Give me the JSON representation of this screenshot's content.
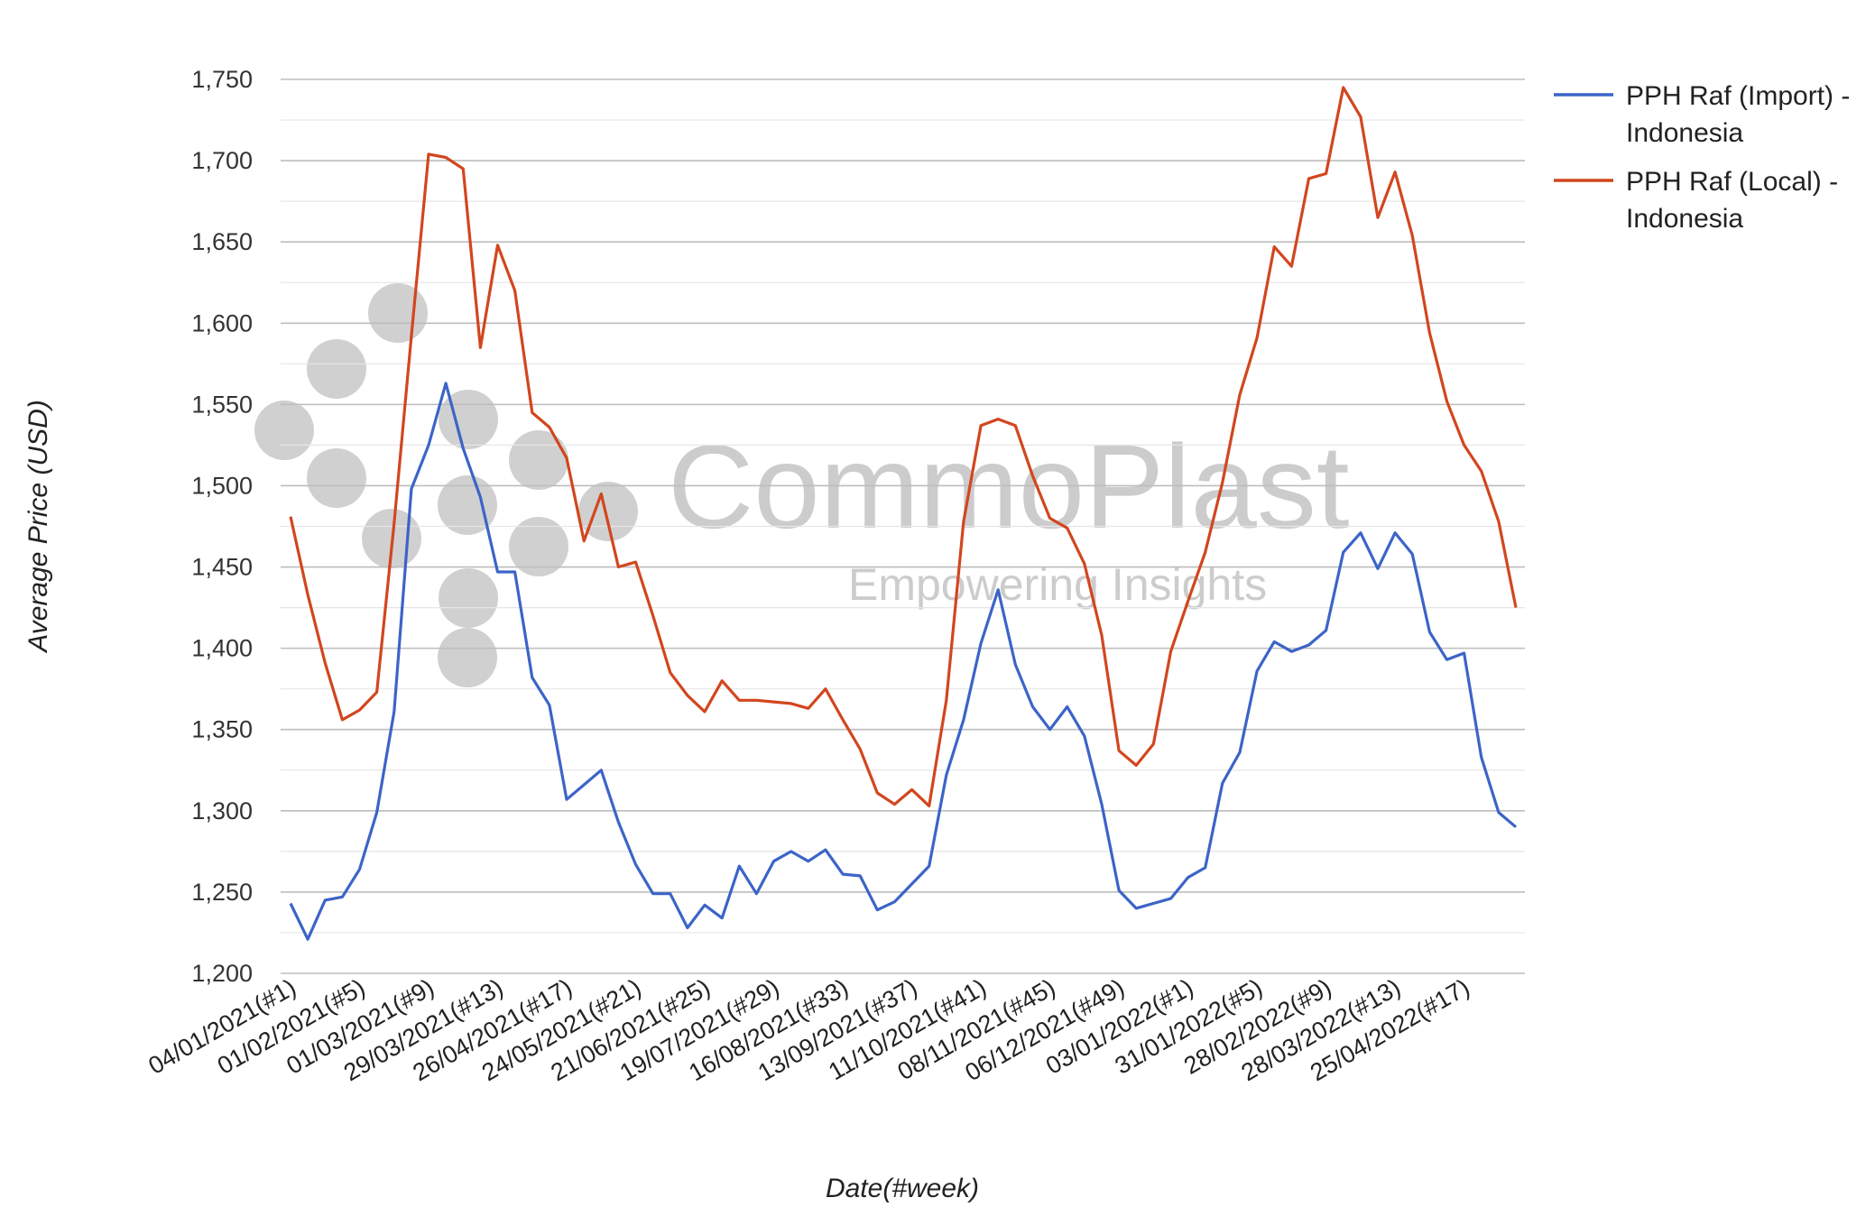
{
  "chart_data": {
    "type": "line",
    "x_label": "Date(#week)",
    "y_label": "Average Price (USD)",
    "y_range": [
      1200,
      1750
    ],
    "y_ticks": [
      1200,
      1250,
      1300,
      1350,
      1400,
      1450,
      1500,
      1550,
      1600,
      1650,
      1700,
      1750
    ],
    "y_tick_labels": [
      "1,200",
      "1,250",
      "1,300",
      "1,350",
      "1,400",
      "1,450",
      "1,500",
      "1,550",
      "1,600",
      "1,650",
      "1,700",
      "1,750"
    ],
    "grid": "horizontal",
    "legend_position": "right",
    "watermark": {
      "brand": "CommoPlast",
      "tagline": "Empowering Insights"
    },
    "x_tick_labels": [
      {
        "index": 0,
        "label": "04/01/2021(#1)"
      },
      {
        "index": 4,
        "label": "01/02/2021(#5)"
      },
      {
        "index": 8,
        "label": "01/03/2021(#9)"
      },
      {
        "index": 12,
        "label": "29/03/2021(#13)"
      },
      {
        "index": 16,
        "label": "26/04/2021(#17)"
      },
      {
        "index": 20,
        "label": "24/05/2021(#21)"
      },
      {
        "index": 24,
        "label": "21/06/2021(#25)"
      },
      {
        "index": 28,
        "label": "19/07/2021(#29)"
      },
      {
        "index": 32,
        "label": "16/08/2021(#33)"
      },
      {
        "index": 36,
        "label": "13/09/2021(#37)"
      },
      {
        "index": 40,
        "label": "11/10/2021(#41)"
      },
      {
        "index": 44,
        "label": "08/11/2021(#45)"
      },
      {
        "index": 48,
        "label": "06/12/2021(#49)"
      },
      {
        "index": 52,
        "label": "03/01/2022(#1)"
      },
      {
        "index": 56,
        "label": "31/01/2022(#5)"
      },
      {
        "index": 60,
        "label": "28/02/2022(#9)"
      },
      {
        "index": 64,
        "label": "28/03/2022(#13)"
      },
      {
        "index": 68,
        "label": "25/04/2022(#17)"
      }
    ],
    "series": [
      {
        "name": "PPH Raf (Import) - Indonesia",
        "legend_lines": [
          "PPH Raf (Import) -",
          "Indonesia"
        ],
        "color": "#3c64c8",
        "values": [
          1243,
          1221,
          1245,
          1247,
          1264,
          1299,
          1361,
          1498,
          1525,
          1563,
          1523,
          1493,
          1447,
          1447,
          1382,
          1365,
          1307,
          1316,
          1325,
          1293,
          1267,
          1249,
          1249,
          1228,
          1242,
          1234,
          1266,
          1249,
          1269,
          1275,
          1269,
          1276,
          1261,
          1260,
          1239,
          1244,
          1255,
          1266,
          1322,
          1356,
          1403,
          1436,
          1390,
          1364,
          1350,
          1364,
          1346,
          1304,
          1251,
          1240,
          1243,
          1246,
          1259,
          1265,
          1317,
          1336,
          1386,
          1404,
          1398,
          1402,
          1411,
          1459,
          1471,
          1449,
          1471,
          1458,
          1410,
          1393,
          1397,
          1333,
          1299,
          1290
        ]
      },
      {
        "name": "PPH Raf (Local) - Indonesia",
        "legend_lines": [
          "PPH Raf (Local) -",
          "Indonesia"
        ],
        "color": "#d2461e",
        "values": [
          1481,
          1433,
          1391,
          1356,
          1362,
          1373,
          1477,
          1592,
          1704,
          1702,
          1695,
          1585,
          1648,
          1620,
          1545,
          1536,
          1517,
          1466,
          1495,
          1450,
          1453,
          1420,
          1385,
          1371,
          1361,
          1380,
          1368,
          1368,
          1367,
          1366,
          1363,
          1375,
          1356,
          1338,
          1311,
          1304,
          1313,
          1303,
          1368,
          1478,
          1537,
          1541,
          1537,
          1506,
          1480,
          1474,
          1452,
          1408,
          1337,
          1328,
          1341,
          1398,
          1429,
          1459,
          1502,
          1556,
          1591,
          1647,
          1635,
          1689,
          1692,
          1745,
          1727,
          1665,
          1693,
          1654,
          1594,
          1552,
          1525,
          1509,
          1478,
          1425
        ]
      }
    ]
  }
}
